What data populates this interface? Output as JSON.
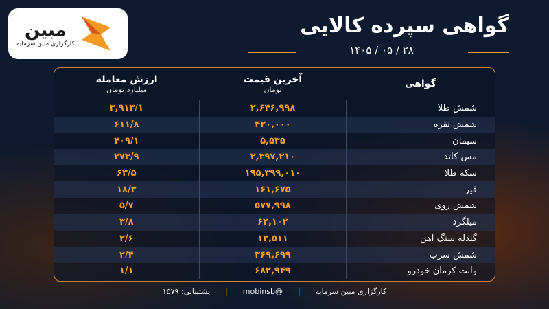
{
  "header": {
    "title": "گواهی سپرده کالایی",
    "date": "۱۴۰۵ / ۰۵ / ۲۸",
    "logo": {
      "name": "مبین",
      "subtitle": "کارگزاری مبین سرمایه"
    }
  },
  "table": {
    "columns": [
      {
        "title": "گواهی"
      },
      {
        "title": "آخرین قیمت",
        "unit": "تومان"
      },
      {
        "title": "ارزش معامله",
        "unit": "میلیارد تومان"
      }
    ],
    "rows": [
      [
        "شمش طلا",
        "۲,۶۴۶,۹۹۸",
        "۳,۹۱۳/۱"
      ],
      [
        "شمش نقره",
        "۴۲۰,۰۰۰",
        "۶۱۱/۸"
      ],
      [
        "سیمان",
        "۵,۵۳۵",
        "۴۰۹/۱"
      ],
      [
        "مس کاتد",
        "۲,۳۹۷,۲۱۰",
        "۲۷۳/۹"
      ],
      [
        "سکه طلا",
        "۱۹۵,۳۹۹,۰۱۰",
        "۶۳/۵"
      ],
      [
        "قیر",
        "۱۶۱,۶۷۵",
        "۱۸/۳"
      ],
      [
        "شمش روی",
        "۵۷۷,۹۹۸",
        "۵/۷"
      ],
      [
        "میلگرد",
        "۶۲,۱۰۲",
        "۳/۸"
      ],
      [
        "گندله سنگ آهن",
        "۱۲,۵۱۱",
        "۲/۶"
      ],
      [
        "شمش سرب",
        "۳۶۹,۶۹۹",
        "۲/۴"
      ],
      [
        "وانت کرمان خودرو",
        "۶۸۲,۹۴۹",
        "۱/۱"
      ]
    ]
  },
  "footer": {
    "broker": "کارگزاری مبین سرمایه",
    "handle": "@mobinsb",
    "support": "پشتیبانی: ۱۵۷۹"
  }
}
